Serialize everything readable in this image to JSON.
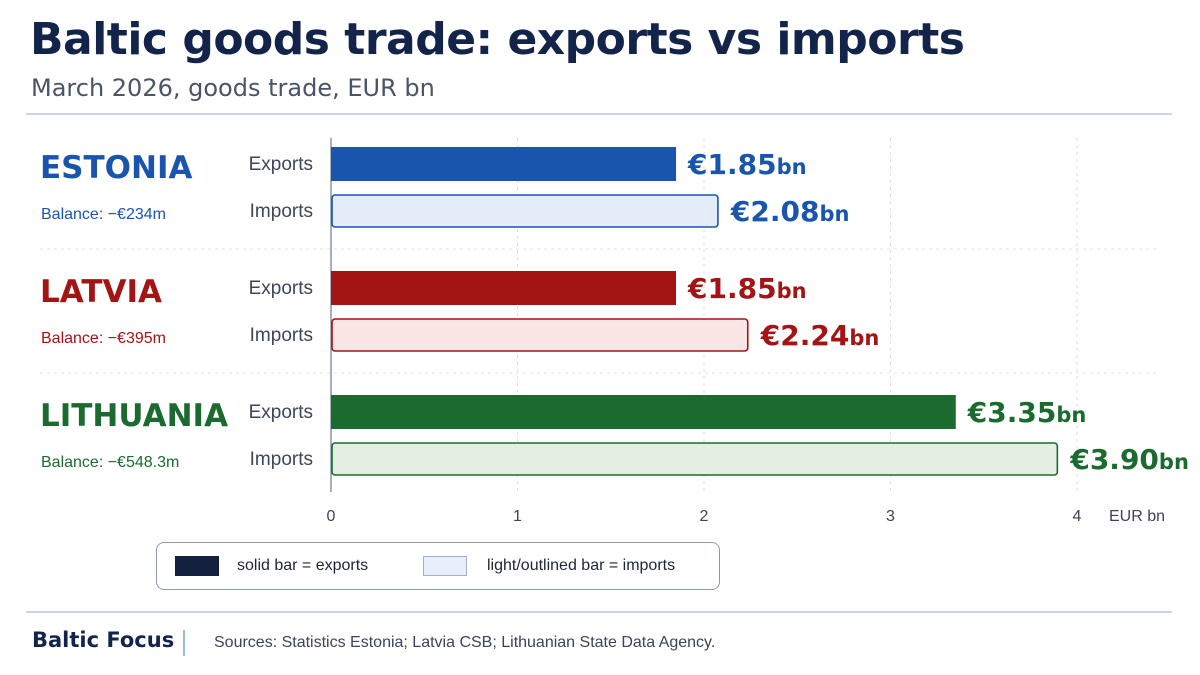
{
  "header": {
    "title": "Baltic goods trade: exports vs imports",
    "subtitle": "March 2026, goods trade, EUR bn"
  },
  "chart_data": {
    "type": "bar",
    "orientation": "horizontal",
    "title": "Baltic goods trade: exports vs imports",
    "subtitle": "March 2026, goods trade, EUR bn",
    "xlabel": "EUR bn",
    "xlim": [
      0,
      4
    ],
    "xticks": [
      0,
      1,
      2,
      3,
      4
    ],
    "grid": true,
    "groups": [
      {
        "country": "ESTONIA",
        "balance_label": "Balance: −€234m",
        "color": "#1a55ad",
        "light": "#e4edf9",
        "bars": [
          {
            "label": "Exports",
            "value": 1.85,
            "display": "€1.85",
            "unit": "bn",
            "style": "solid"
          },
          {
            "label": "Imports",
            "value": 2.08,
            "display": "€2.08",
            "unit": "bn",
            "style": "outlined"
          }
        ]
      },
      {
        "country": "LATVIA",
        "balance_label": "Balance: −€395m",
        "color": "#a31515",
        "light": "#fbe6e6",
        "bars": [
          {
            "label": "Exports",
            "value": 1.85,
            "display": "€1.85",
            "unit": "bn",
            "style": "solid"
          },
          {
            "label": "Imports",
            "value": 2.24,
            "display": "€2.24",
            "unit": "bn",
            "style": "outlined"
          }
        ]
      },
      {
        "country": "LITHUANIA",
        "balance_label": "Balance: −€548.3m",
        "color": "#1b6b30",
        "light": "#e3f0e1",
        "bars": [
          {
            "label": "Exports",
            "value": 3.35,
            "display": "€3.35",
            "unit": "bn",
            "style": "solid"
          },
          {
            "label": "Imports",
            "value": 3.9,
            "display": "€3.90",
            "unit": "bn",
            "style": "outlined"
          }
        ]
      }
    ]
  },
  "legend": {
    "exports_label": "solid bar = exports",
    "imports_label": "light/outlined bar = imports"
  },
  "footer": {
    "brand": "Baltic Focus",
    "sources": "Sources: Statistics Estonia; Latvia CSB; Lithuanian State Data Agency."
  }
}
